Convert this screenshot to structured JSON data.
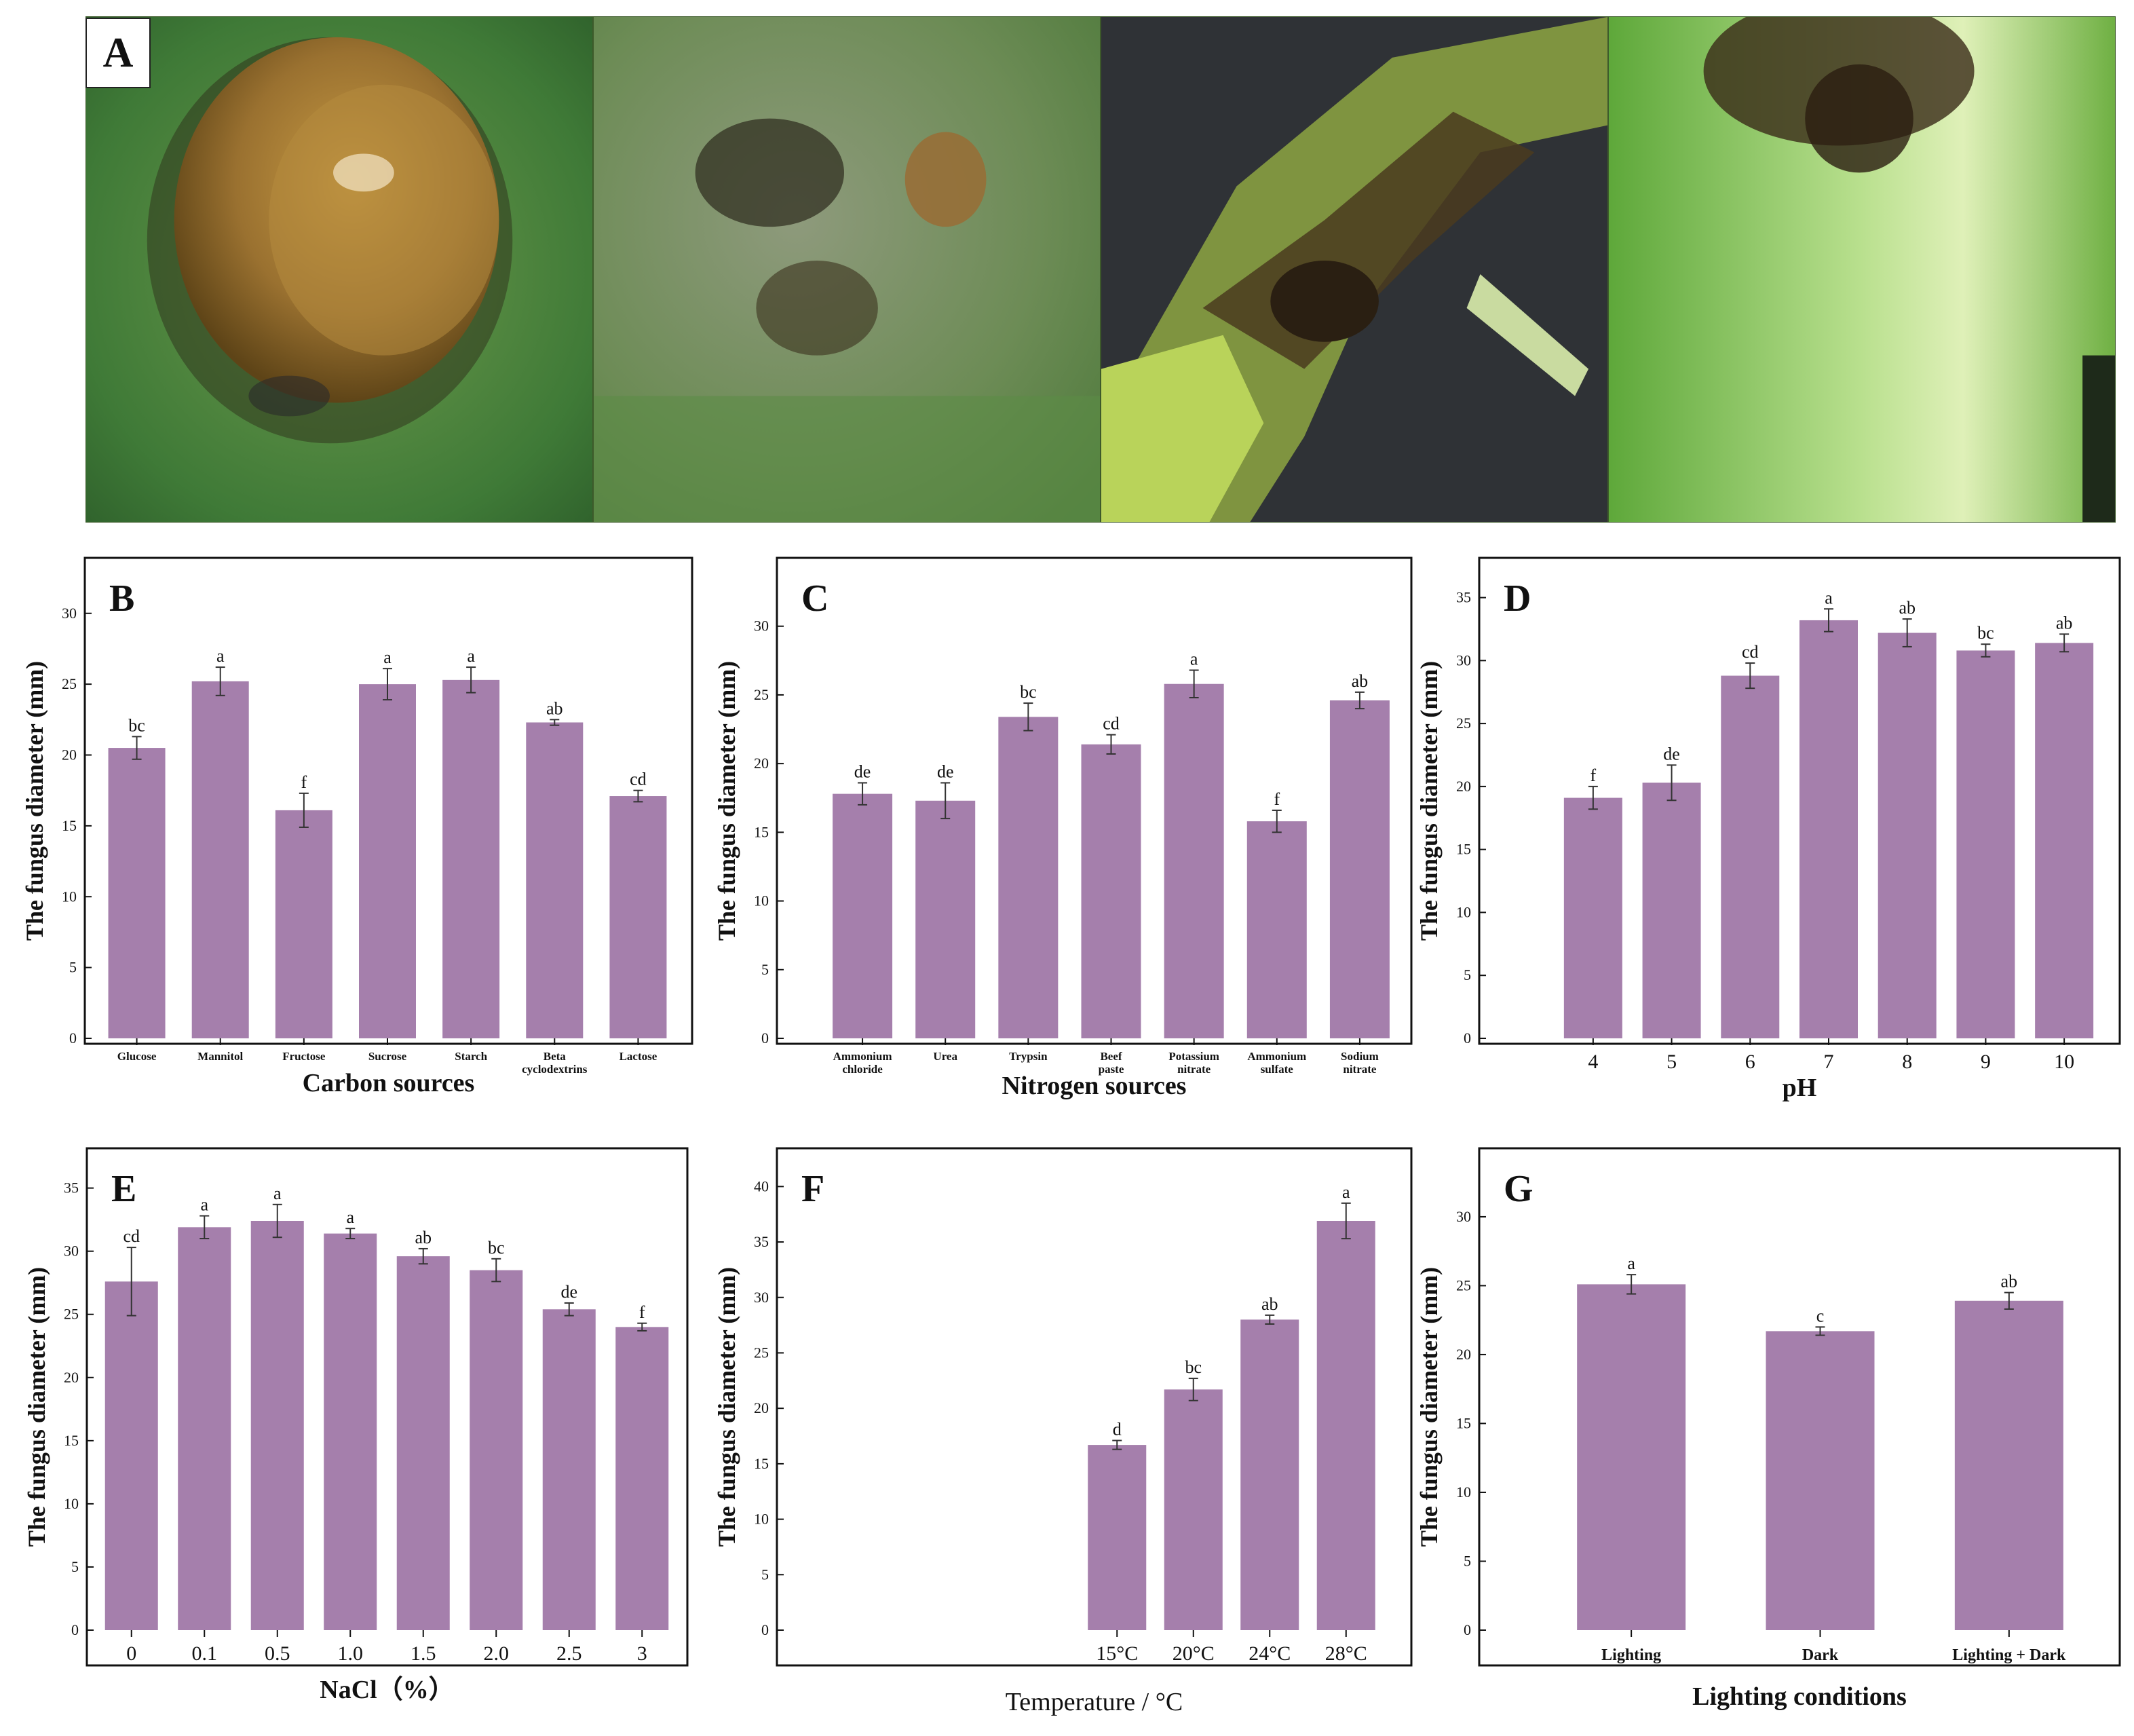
{
  "panel_A": {
    "letter": "A",
    "photos": [
      "amber-droplet-on-leaf",
      "lesion-with-dark-spots",
      "rotted-stem-section",
      "lesion-on-green-tissue"
    ]
  },
  "colors": {
    "bar": "#a57fac",
    "axis": "#111111"
  },
  "chart_data": [
    {
      "id": "B",
      "type": "bar",
      "panel_letter": "B",
      "ylabel": "The fungus diameter (mm)",
      "xlabel": "Carbon sources",
      "ylim": [
        0,
        32
      ],
      "yticks": [
        0,
        5,
        10,
        15,
        20,
        25,
        30
      ],
      "categories": [
        [
          "Glucose"
        ],
        [
          "Mannitol"
        ],
        [
          "Fructose"
        ],
        [
          "Sucrose"
        ],
        [
          "Starch"
        ],
        [
          "Beta",
          "cyclodextrins"
        ],
        [
          "Lactose"
        ]
      ],
      "values": [
        20.5,
        25.2,
        16.1,
        25.0,
        25.3,
        22.3,
        17.1
      ],
      "errors": [
        0.8,
        1.0,
        1.2,
        1.1,
        0.9,
        0.2,
        0.4
      ],
      "letters": [
        "bc",
        "a",
        "f",
        "a",
        "a",
        "ab",
        "cd"
      ]
    },
    {
      "id": "C",
      "type": "bar",
      "panel_letter": "C",
      "ylabel": "The fungus diameter (mm)",
      "xlabel": "Nitrogen sources",
      "ylim": [
        0,
        33
      ],
      "yticks": [
        0,
        5,
        10,
        15,
        20,
        25,
        30
      ],
      "categories": [
        [
          "Ammonium",
          "chloride"
        ],
        [
          "Urea"
        ],
        [
          "Trypsin"
        ],
        [
          "Beef",
          "paste"
        ],
        [
          "Potassium",
          "nitrate"
        ],
        [
          "Ammonium",
          "sulfate"
        ],
        [
          "Sodium",
          "nitrate"
        ]
      ],
      "values": [
        17.8,
        17.3,
        23.4,
        21.4,
        25.8,
        15.8,
        24.6
      ],
      "errors": [
        0.8,
        1.3,
        1.0,
        0.7,
        1.0,
        0.8,
        0.6
      ],
      "letters": [
        "de",
        "de",
        "bc",
        "cd",
        "a",
        "f",
        "ab"
      ]
    },
    {
      "id": "D",
      "type": "bar",
      "panel_letter": "D",
      "ylabel": "The fungus diameter (mm)",
      "xlabel": "pH",
      "ylim": [
        0,
        36
      ],
      "yticks": [
        0,
        5,
        10,
        15,
        20,
        25,
        30,
        35
      ],
      "categories": [
        [
          "4"
        ],
        [
          "5"
        ],
        [
          "6"
        ],
        [
          "7"
        ],
        [
          "8"
        ],
        [
          "9"
        ],
        [
          "10"
        ]
      ],
      "values": [
        19.1,
        20.3,
        28.8,
        33.2,
        32.2,
        30.8,
        31.4
      ],
      "errors": [
        0.9,
        1.4,
        1.0,
        0.9,
        1.1,
        0.5,
        0.7
      ],
      "letters": [
        "f",
        "de",
        "cd",
        "a",
        "ab",
        "bc",
        "ab"
      ]
    },
    {
      "id": "E",
      "type": "bar",
      "panel_letter": "E",
      "ylabel": "The fungus diameter (mm)",
      "xlabel": "NaCl（%）",
      "ylim": [
        0,
        36
      ],
      "yticks": [
        0,
        5,
        10,
        15,
        20,
        25,
        30,
        35
      ],
      "categories": [
        [
          "0"
        ],
        [
          "0.1"
        ],
        [
          "0.5"
        ],
        [
          "1.0"
        ],
        [
          "1.5"
        ],
        [
          "2.0"
        ],
        [
          "2.5"
        ],
        [
          "3"
        ]
      ],
      "values": [
        27.6,
        31.9,
        32.4,
        31.4,
        29.6,
        28.5,
        25.4,
        24.0
      ],
      "errors": [
        2.7,
        0.9,
        1.3,
        0.4,
        0.6,
        0.9,
        0.5,
        0.3
      ],
      "letters": [
        "cd",
        "a",
        "a",
        "a",
        "ab",
        "bc",
        "de",
        "f"
      ]
    },
    {
      "id": "F",
      "type": "bar",
      "panel_letter": "F",
      "ylabel": "The fungus diameter (mm)",
      "xlabel": "Temperature / °C",
      "ylim": [
        0,
        41
      ],
      "yticks": [
        0,
        5,
        10,
        15,
        20,
        25,
        30,
        35,
        40
      ],
      "categories": [
        [
          "15°C"
        ],
        [
          "20°C"
        ],
        [
          "24°C"
        ],
        [
          "28°C"
        ]
      ],
      "values": [
        16.7,
        21.7,
        28.0,
        36.9
      ],
      "errors": [
        0.4,
        1.0,
        0.4,
        1.6
      ],
      "letters": [
        "d",
        "bc",
        "ab",
        "a"
      ]
    },
    {
      "id": "G",
      "type": "bar",
      "panel_letter": "G",
      "ylabel": "The fungus diameter (mm)",
      "xlabel": "Lighting conditions",
      "ylim": [
        0,
        33
      ],
      "yticks": [
        0,
        5,
        10,
        15,
        20,
        25,
        30
      ],
      "categories": [
        [
          "Lighting"
        ],
        [
          "Dark"
        ],
        [
          "Lighting + Dark"
        ]
      ],
      "values": [
        25.1,
        21.7,
        23.9
      ],
      "errors": [
        0.7,
        0.3,
        0.6
      ],
      "letters": [
        "a",
        "c",
        "ab"
      ]
    }
  ]
}
